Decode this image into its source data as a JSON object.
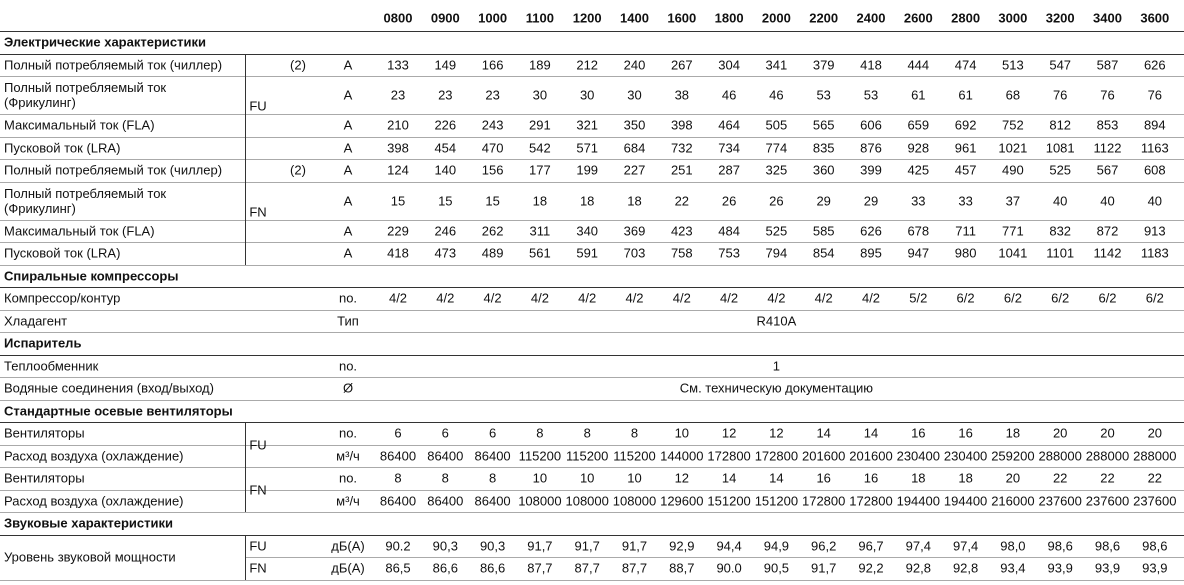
{
  "columns": [
    "0800",
    "0900",
    "1000",
    "1100",
    "1200",
    "1400",
    "1600",
    "1800",
    "2000",
    "2200",
    "2400",
    "2600",
    "2800",
    "3000",
    "3200",
    "3400",
    "3600"
  ],
  "sections": [
    {
      "title": "Электрические характеристики",
      "rows": [
        {
          "group": "FU",
          "rows": [
            {
              "label": "Полный потребляемый ток (чиллер)",
              "note": "(2)",
              "unit": "A",
              "values": [
                133,
                149,
                166,
                189,
                212,
                240,
                267,
                304,
                341,
                379,
                418,
                444,
                474,
                513,
                547,
                587,
                626
              ]
            },
            {
              "label": "Полный потребляемый ток\n(Фрикулинг)",
              "unit": "A",
              "values": [
                23,
                23,
                23,
                30,
                30,
                30,
                38,
                46,
                46,
                53,
                53,
                61,
                61,
                68,
                76,
                76,
                76
              ]
            },
            {
              "label": "Максимальный ток (FLA)",
              "unit": "A",
              "values": [
                210,
                226,
                243,
                291,
                321,
                350,
                398,
                464,
                505,
                565,
                606,
                659,
                692,
                752,
                812,
                853,
                894
              ]
            },
            {
              "label": "Пусковой ток (LRA)",
              "unit": "A",
              "values": [
                398,
                454,
                470,
                542,
                571,
                684,
                732,
                734,
                774,
                835,
                876,
                928,
                961,
                1021,
                1081,
                1122,
                1163
              ]
            }
          ]
        },
        {
          "group": "FN",
          "rows": [
            {
              "label": "Полный потребляемый ток (чиллер)",
              "note": "(2)",
              "unit": "A",
              "values": [
                124,
                140,
                156,
                177,
                199,
                227,
                251,
                287,
                325,
                360,
                399,
                425,
                457,
                490,
                525,
                567,
                608
              ]
            },
            {
              "label": "Полный потребляемый ток\n(Фрикулинг)",
              "unit": "A",
              "values": [
                15,
                15,
                15,
                18,
                18,
                18,
                22,
                26,
                26,
                29,
                29,
                33,
                33,
                37,
                40,
                40,
                40
              ]
            },
            {
              "label": "Максимальный ток (FLA)",
              "unit": "A",
              "values": [
                229,
                246,
                262,
                311,
                340,
                369,
                423,
                484,
                525,
                585,
                626,
                678,
                711,
                771,
                832,
                872,
                913
              ]
            },
            {
              "label": "Пусковой ток (LRA)",
              "unit": "A",
              "values": [
                418,
                473,
                489,
                561,
                591,
                703,
                758,
                753,
                794,
                854,
                895,
                947,
                980,
                1041,
                1101,
                1142,
                1183
              ]
            }
          ]
        }
      ]
    },
    {
      "title": "Спиральные компрессоры",
      "rows": [
        {
          "label": "Компрессор/контур",
          "unit": "no.",
          "values": [
            "4/2",
            "4/2",
            "4/2",
            "4/2",
            "4/2",
            "4/2",
            "4/2",
            "4/2",
            "4/2",
            "4/2",
            "4/2",
            "5/2",
            "6/2",
            "6/2",
            "6/2",
            "6/2",
            "6/2"
          ]
        },
        {
          "label": "Хладагент",
          "unit": "Тип",
          "value": "R410A"
        }
      ]
    },
    {
      "title": "Испаритель",
      "rows": [
        {
          "label": "Теплообменник",
          "unit": "no.",
          "value": "1"
        },
        {
          "label": "Водяные соединения (вход/выход)",
          "unit": "Ø",
          "value": "См. техническую документацию"
        }
      ]
    },
    {
      "title": "Стандартные осевые вентиляторы",
      "rows": [
        {
          "group": "FU",
          "rows": [
            {
              "label": "Вентиляторы",
              "unit": "no.",
              "values": [
                6,
                6,
                6,
                8,
                8,
                8,
                10,
                12,
                12,
                14,
                14,
                16,
                16,
                18,
                20,
                20,
                20
              ]
            },
            {
              "label": "Расход воздуха (охлаждение)",
              "unit": "м³/ч",
              "values": [
                86400,
                86400,
                86400,
                115200,
                115200,
                115200,
                144000,
                172800,
                172800,
                201600,
                201600,
                230400,
                230400,
                259200,
                288000,
                288000,
                288000
              ]
            }
          ]
        },
        {
          "group": "FN",
          "rows": [
            {
              "label": "Вентиляторы",
              "unit": "no.",
              "values": [
                8,
                8,
                8,
                10,
                10,
                10,
                12,
                14,
                14,
                16,
                16,
                18,
                18,
                20,
                22,
                22,
                22
              ]
            },
            {
              "label": "Расход воздуха (охлаждение)",
              "unit": "м³/ч",
              "values": [
                86400,
                86400,
                86400,
                108000,
                108000,
                108000,
                129600,
                151200,
                151200,
                172800,
                172800,
                194400,
                194400,
                216000,
                237600,
                237600,
                237600
              ]
            }
          ]
        }
      ]
    },
    {
      "title": "Звуковые характеристики",
      "rows": [
        {
          "label": "Уровень звуковой мощности",
          "rows": [
            {
              "group": "FU",
              "unit": "дБ(A)",
              "values": [
                "90.2",
                "90,3",
                "90,3",
                "91,7",
                "91,7",
                "91,7",
                "92,9",
                "94,4",
                "94,9",
                "96,2",
                "96,7",
                "97,4",
                "97,4",
                "98,0",
                "98,6",
                "98,6",
                "98,6"
              ]
            },
            {
              "group": "FN",
              "unit": "дБ(A)",
              "values": [
                "86,5",
                "86,6",
                "86,6",
                "87,7",
                "87,7",
                "87,7",
                "88,7",
                "90.0",
                "90,5",
                "91,7",
                "92,2",
                "92,8",
                "92,8",
                "93,4",
                "93,9",
                "93,9",
                "93,9"
              ]
            }
          ]
        }
      ]
    }
  ]
}
